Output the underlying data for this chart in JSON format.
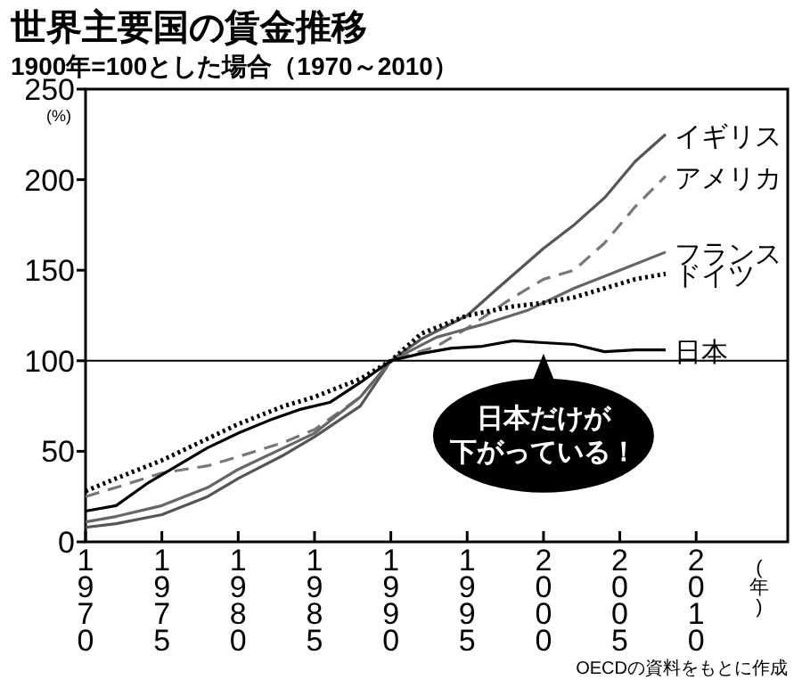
{
  "chart_data": {
    "type": "line",
    "title": "世界主要国の賃金推移",
    "subtitle": "1900年=100とした場合（1970～2010）",
    "ylabel": "(%)",
    "xlabel": "(年)",
    "xlim": [
      1970,
      2016
    ],
    "xticks": [
      1970,
      1975,
      1980,
      1985,
      1990,
      1995,
      2000,
      2005,
      2010
    ],
    "ylim": [
      0,
      250
    ],
    "yticks": [
      0,
      50,
      100,
      150,
      200,
      250
    ],
    "grid": false,
    "ref_lines": [
      {
        "axis": "y",
        "value": 100,
        "label": null
      }
    ],
    "series": [
      {
        "name": "イギリス",
        "color": "#555555",
        "line_style": "solid",
        "x": [
          1970,
          1972,
          1975,
          1978,
          1980,
          1983,
          1985,
          1988,
          1990,
          1992,
          1995,
          1997,
          2000,
          2002,
          2004,
          2006,
          2008
        ],
        "values": [
          8,
          10,
          15,
          25,
          35,
          48,
          58,
          75,
          100,
          112,
          125,
          140,
          162,
          175,
          190,
          210,
          225
        ]
      },
      {
        "name": "アメリカ",
        "color": "#777777",
        "line_style": "dashed",
        "x": [
          1970,
          1972,
          1975,
          1978,
          1980,
          1983,
          1985,
          1988,
          1990,
          1993,
          1995,
          1998,
          2000,
          2002,
          2004,
          2006,
          2008
        ],
        "values": [
          25,
          30,
          38,
          42,
          47,
          55,
          62,
          80,
          100,
          108,
          118,
          135,
          145,
          150,
          165,
          185,
          202
        ]
      },
      {
        "name": "フランス",
        "color": "#666666",
        "line_style": "solid",
        "x": [
          1970,
          1972,
          1975,
          1978,
          1980,
          1983,
          1985,
          1988,
          1990,
          1993,
          1996,
          1999,
          2002,
          2005,
          2008
        ],
        "values": [
          11,
          14,
          20,
          30,
          40,
          52,
          60,
          80,
          100,
          113,
          120,
          128,
          140,
          150,
          160
        ]
      },
      {
        "name": "ドイツ",
        "color": "#000000",
        "line_style": "dotted",
        "x": [
          1970,
          1972,
          1975,
          1978,
          1980,
          1983,
          1985,
          1988,
          1990,
          1992,
          1995,
          1998,
          2000,
          2002,
          2004,
          2006,
          2008
        ],
        "values": [
          28,
          35,
          45,
          57,
          65,
          75,
          80,
          90,
          100,
          115,
          125,
          130,
          132,
          135,
          140,
          145,
          148
        ]
      },
      {
        "name": "日本",
        "color": "#000000",
        "line_style": "solid",
        "x": [
          1970,
          1972,
          1974,
          1976,
          1978,
          1980,
          1982,
          1984,
          1986,
          1988,
          1990,
          1992,
          1994,
          1996,
          1998,
          2000,
          2002,
          2004,
          2006,
          2008
        ],
        "values": [
          17,
          20,
          32,
          42,
          52,
          60,
          67,
          73,
          77,
          88,
          100,
          104,
          107,
          108,
          111,
          110,
          109,
          105,
          106,
          106
        ]
      }
    ],
    "annotations": [
      {
        "text": "日本だけが下がっている！",
        "x": 2000,
        "y": 104
      },
      "OECDの資料をもとに作成"
    ]
  }
}
